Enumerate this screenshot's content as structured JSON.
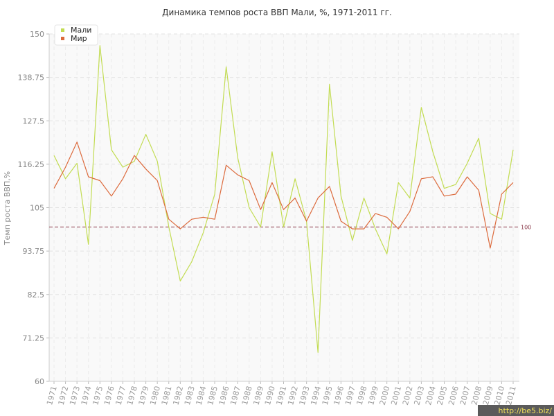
{
  "chart_data": {
    "type": "line",
    "title": "Динамика темпов роста ВВП Мали, %, 1971-2011 гг.",
    "xlabel": "",
    "ylabel": "Темп роста ВВП,%",
    "ylim": [
      60,
      150
    ],
    "yticks": [
      "60",
      "71.25",
      "82.5",
      "93.75",
      "105",
      "116.25",
      "127.5",
      "138.75",
      "150"
    ],
    "grid": true,
    "legend_position": "top-left",
    "x": [
      1971,
      1972,
      1973,
      1974,
      1975,
      1976,
      1977,
      1978,
      1979,
      1980,
      1981,
      1982,
      1983,
      1984,
      1985,
      1986,
      1987,
      1988,
      1989,
      1990,
      1991,
      1992,
      1993,
      1994,
      1995,
      1996,
      1997,
      1998,
      1999,
      2000,
      2001,
      2002,
      2003,
      2004,
      2005,
      2006,
      2007,
      2008,
      2009,
      2010,
      2011
    ],
    "series": [
      {
        "name": "Мали",
        "color": "#c2dc52",
        "values": [
          118.5,
          112.5,
          116.5,
          95.5,
          147.0,
          120.0,
          115.5,
          117.0,
          124.0,
          117.0,
          100.0,
          86.0,
          91.0,
          98.5,
          108.5,
          141.5,
          118.0,
          105.0,
          100.0,
          119.5,
          100.0,
          112.5,
          101.5,
          67.5,
          137.0,
          108.0,
          96.5,
          107.5,
          99.5,
          93.0,
          111.5,
          107.5,
          131.0,
          119.5,
          110.0,
          111.0,
          116.5,
          123.0,
          103.5,
          102.0,
          120.0
        ]
      },
      {
        "name": "Мир",
        "color": "#dc6a3c",
        "values": [
          110.0,
          115.5,
          122.0,
          113.0,
          112.0,
          108.0,
          112.5,
          118.5,
          115.0,
          112.0,
          102.0,
          99.5,
          102.0,
          102.5,
          102.0,
          116.0,
          113.5,
          112.0,
          104.5,
          111.5,
          104.5,
          107.5,
          101.5,
          107.5,
          110.5,
          101.5,
          99.5,
          99.5,
          103.5,
          102.5,
          99.5,
          104.0,
          112.5,
          113.0,
          108.0,
          108.5,
          113.0,
          109.5,
          94.5,
          108.5,
          111.5
        ]
      }
    ],
    "reference_line": {
      "value": 100,
      "label": "100",
      "color": "#8a3a4a"
    }
  },
  "watermark": "http://be5.biz/"
}
